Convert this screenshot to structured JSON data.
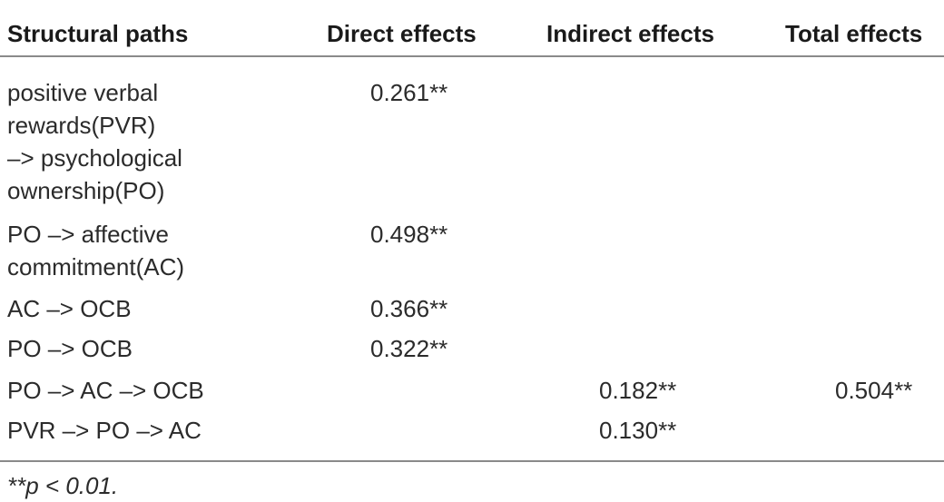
{
  "table": {
    "header": [
      "Structural paths",
      "Direct effects",
      "Indirect effects",
      "Total effects"
    ],
    "rows": [
      [
        "positive verbal\nrewards(PVR)\n–> psychological\nownership(PO)",
        "0.261**",
        null,
        null
      ],
      [
        "PO –> affective\ncommitment(AC)",
        "0.498**",
        null,
        null
      ],
      [
        "AC –> OCB",
        "0.366**",
        null,
        null
      ],
      [
        "PO –> OCB",
        "0.322**",
        null,
        null
      ],
      [
        "PO –> AC –> OCB",
        null,
        "0.182**",
        "0.504**"
      ],
      [
        "PVR –> PO –> AC",
        null,
        "0.130**",
        null
      ]
    ],
    "footnote": "**p < 0.01."
  }
}
